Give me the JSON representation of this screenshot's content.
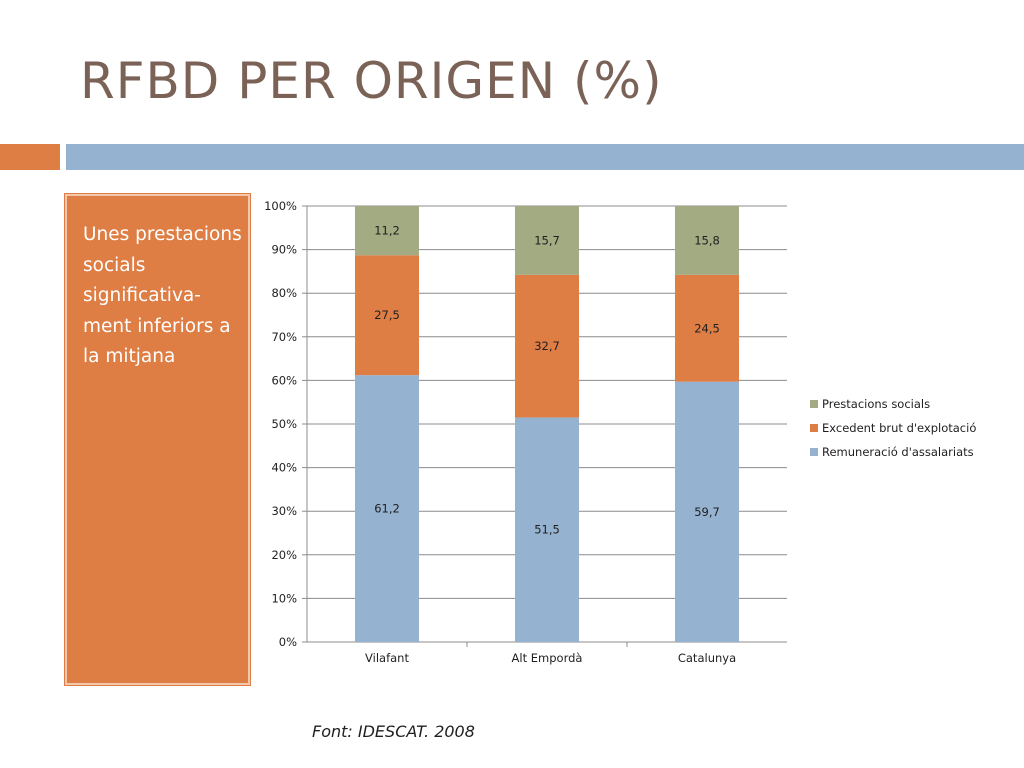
{
  "slide": {
    "title": "RFBD PER ORIGEN (%)",
    "note": "Unes prestacions socials significativa-ment inferiors a la mitjana",
    "source": "Font: IDESCAT. 2008"
  },
  "colors": {
    "title": "#7b6256",
    "accent_orange": "#de7e45",
    "accent_blue": "#95b3d1"
  },
  "chart_data": {
    "type": "bar",
    "stacked": true,
    "categories": [
      "Vilafant",
      "Alt Empordà",
      "Catalunya"
    ],
    "series": [
      {
        "name": "Remuneració d'assalariats",
        "values": [
          61.2,
          51.5,
          59.7
        ],
        "labels": [
          "61,2",
          "51,5",
          "59,7"
        ],
        "color": "#95b3d1"
      },
      {
        "name": "Excedent brut d'explotació",
        "values": [
          27.5,
          32.7,
          24.5
        ],
        "labels": [
          "27,5",
          "32,7",
          "24,5"
        ],
        "color": "#de7e45"
      },
      {
        "name": "Prestacions socials",
        "values": [
          11.2,
          15.7,
          15.8
        ],
        "labels": [
          "11,2",
          "15,7",
          "15,8"
        ],
        "color": "#a2ab81"
      }
    ],
    "yticks": [
      "0%",
      "10%",
      "20%",
      "30%",
      "40%",
      "50%",
      "60%",
      "70%",
      "80%",
      "90%",
      "100%"
    ],
    "ylim": [
      0,
      100
    ],
    "grid": true,
    "legend": "right"
  }
}
